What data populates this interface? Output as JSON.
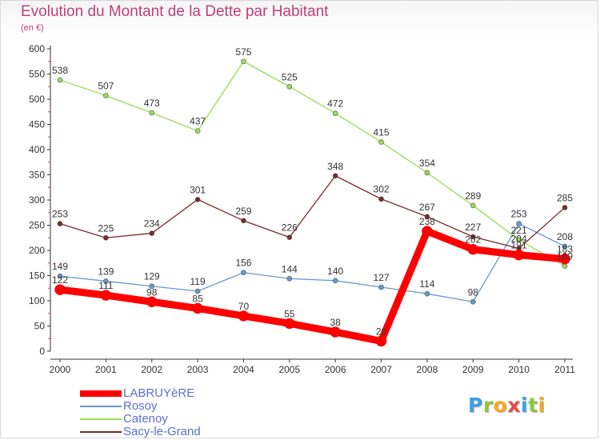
{
  "chart_data": {
    "type": "line",
    "title": "Evolution du Montant de la Dette par Habitant",
    "subtitle": "(en €)",
    "x": [
      "2000",
      "2001",
      "2002",
      "2003",
      "2004",
      "2005",
      "2006",
      "2007",
      "2008",
      "2009",
      "2010",
      "2011"
    ],
    "yticks": [
      "0",
      "50",
      "100",
      "150",
      "200",
      "250",
      "300",
      "350",
      "400",
      "450",
      "500",
      "550",
      "600"
    ],
    "ylim": [
      0,
      600
    ],
    "grid": false,
    "legend_position": "bottom-left",
    "series": [
      {
        "name": "LABRUYèRE",
        "color": "#ff0000",
        "values": [
          122,
          111,
          98,
          85,
          70,
          55,
          38,
          20,
          238,
          202,
          191,
          183
        ]
      },
      {
        "name": "Rosoy",
        "color": "#6699cc",
        "values": [
          149,
          139,
          129,
          119,
          156,
          144,
          140,
          127,
          114,
          98,
          253,
          208
        ]
      },
      {
        "name": "Catenoy",
        "color": "#99dd55",
        "values": [
          538,
          507,
          473,
          437,
          575,
          525,
          472,
          415,
          354,
          289,
          221,
          169
        ]
      },
      {
        "name": "Sacy-le-Grand",
        "color": "#7a2a2a",
        "values": [
          253,
          225,
          234,
          301,
          259,
          226,
          348,
          302,
          267,
          227,
          204,
          285
        ]
      }
    ]
  },
  "logo": {
    "letters": [
      "P",
      "r",
      "o",
      "x",
      "i",
      "t",
      "i"
    ],
    "colors": [
      "#3aa0e8",
      "#8cc640",
      "#f5a623",
      "#e84a4a",
      "#3aa0e8",
      "#8cc640",
      "#f5a623"
    ]
  }
}
